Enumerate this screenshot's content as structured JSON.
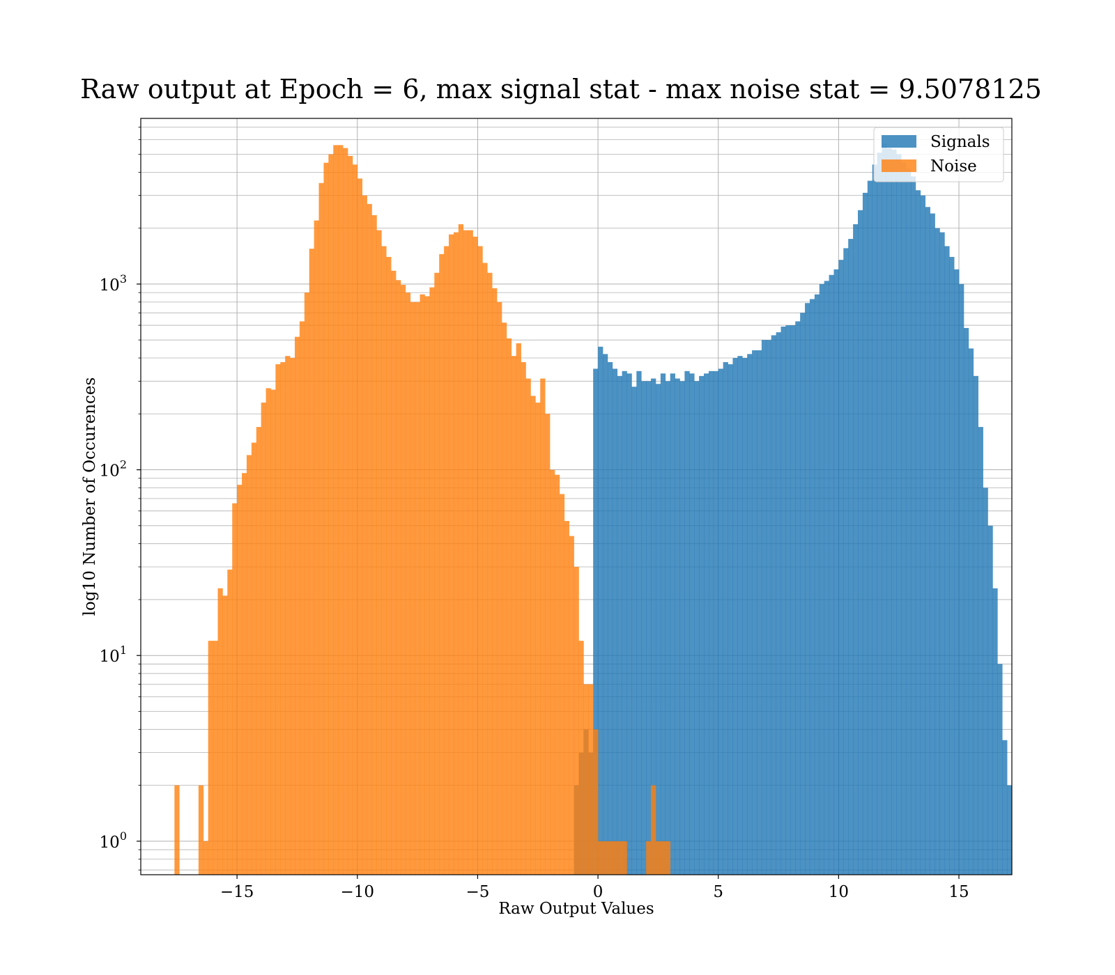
{
  "chart_data": {
    "type": "bar",
    "title": "Raw output at Epoch = 6, max signal stat - max noise stat = 9.5078125",
    "xlabel": "Raw Output Values",
    "ylabel": "log10 Number of Occurences",
    "xlim": [
      -19.0,
      17.2
    ],
    "ylim": [
      0.66,
      7800
    ],
    "yscale": "log",
    "x_ticks": [
      -15,
      -10,
      -5,
      0,
      5,
      10,
      15
    ],
    "x_tick_labels": [
      "−15",
      "−10",
      "−5",
      "0",
      "5",
      "10",
      "15"
    ],
    "y_ticks": [
      1,
      10,
      100,
      1000
    ],
    "y_tick_labels": [
      {
        "base": "10",
        "exp": "0"
      },
      {
        "base": "10",
        "exp": "1"
      },
      {
        "base": "10",
        "exp": "2"
      },
      {
        "base": "10",
        "exp": "3"
      }
    ],
    "grid": true,
    "legend": "top-right",
    "bin_width": 0.2,
    "colors": {
      "Signals": "#1f77b4",
      "Noise": "#ff7f0e"
    },
    "alpha": 0.8,
    "series": [
      {
        "name": "Signals",
        "x_start": -1.0,
        "values": [
          2,
          3,
          4,
          3,
          350,
          460,
          420,
          380,
          350,
          320,
          340,
          330,
          280,
          340,
          300,
          300,
          310,
          290,
          330,
          300,
          330,
          310,
          300,
          340,
          330,
          300,
          320,
          330,
          340,
          340,
          350,
          380,
          370,
          400,
          410,
          400,
          420,
          440,
          440,
          500,
          500,
          530,
          550,
          590,
          600,
          600,
          630,
          700,
          790,
          830,
          880,
          1000,
          1040,
          1120,
          1200,
          1350,
          1560,
          1750,
          2100,
          2500,
          3100,
          3600,
          4400,
          5100,
          5700,
          5400,
          5300,
          5000,
          4500,
          4200,
          3800,
          3200,
          3000,
          2600,
          2400,
          2000,
          1900,
          1600,
          1400,
          1200,
          1000,
          580,
          450,
          320,
          170,
          80,
          50,
          23,
          9,
          3.5,
          2
        ]
      },
      {
        "name": "Noise",
        "x_start": -17.6,
        "values": [
          2,
          0,
          0,
          0,
          0,
          2,
          1,
          12,
          12,
          23,
          21,
          29,
          66,
          83,
          96,
          120,
          140,
          170,
          230,
          275,
          270,
          370,
          380,
          410,
          400,
          520,
          630,
          900,
          1550,
          2200,
          3500,
          4500,
          5000,
          5600,
          5600,
          5400,
          4900,
          4400,
          3700,
          3000,
          2700,
          2350,
          1950,
          1600,
          1400,
          1180,
          1050,
          990,
          900,
          800,
          800,
          880,
          860,
          960,
          1150,
          1450,
          1600,
          1850,
          1900,
          2100,
          1950,
          1950,
          1800,
          1600,
          1300,
          1150,
          950,
          800,
          620,
          510,
          410,
          480,
          380,
          310,
          250,
          230,
          310,
          200,
          100,
          94,
          74,
          53,
          44,
          30,
          12,
          7,
          7,
          4,
          1,
          1,
          1,
          1,
          1,
          1,
          0,
          0,
          0,
          0,
          1,
          2,
          1,
          1,
          1
        ]
      }
    ],
    "series_colors": [
      "#1f77b4",
      "#ff7f0e"
    ]
  }
}
